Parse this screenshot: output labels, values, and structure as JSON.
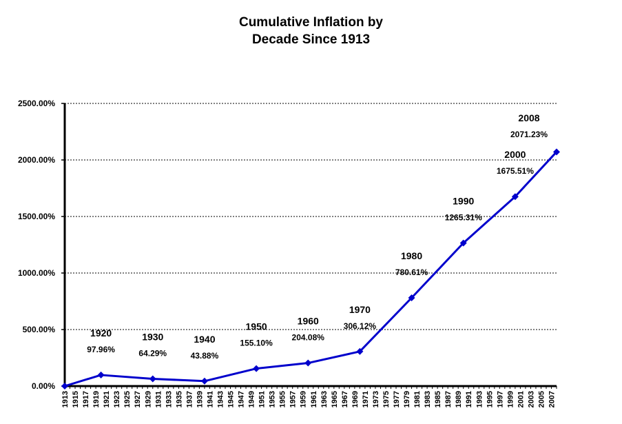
{
  "chart_data": {
    "type": "line",
    "title_lines": [
      "Cumulative Inflation by",
      "Decade Since 1913"
    ],
    "xlabel": "",
    "ylabel": "",
    "x_range": [
      1913,
      2008
    ],
    "ylim": [
      0,
      2500
    ],
    "y_ticks": [
      "0.00%",
      "500.00%",
      "1000.00%",
      "1500.00%",
      "2000.00%",
      "2500.00%"
    ],
    "x_tick_labels": [
      "1913",
      "1915",
      "1917",
      "1919",
      "1921",
      "1923",
      "1925",
      "1927",
      "1929",
      "1931",
      "1933",
      "1935",
      "1937",
      "1939",
      "1941",
      "1943",
      "1945",
      "1947",
      "1949",
      "1951",
      "1953",
      "1955",
      "1957",
      "1959",
      "1961",
      "1963",
      "1965",
      "1967",
      "1969",
      "1971",
      "1973",
      "1975",
      "1977",
      "1979",
      "1981",
      "1983",
      "1985",
      "1987",
      "1989",
      "1991",
      "1993",
      "1995",
      "1997",
      "1999",
      "2001",
      "2003",
      "2005",
      "2007"
    ],
    "grid": true,
    "line_color": "#0000cc",
    "series": [
      {
        "name": "Cumulative Inflation",
        "points": [
          {
            "x": 1913,
            "y": 0,
            "year_label": "",
            "value_label": ""
          },
          {
            "x": 1920,
            "y": 97.96,
            "year_label": "1920",
            "value_label": "97.96%"
          },
          {
            "x": 1930,
            "y": 64.29,
            "year_label": "1930",
            "value_label": "64.29%"
          },
          {
            "x": 1940,
            "y": 43.88,
            "year_label": "1940",
            "value_label": "43.88%"
          },
          {
            "x": 1950,
            "y": 155.1,
            "year_label": "1950",
            "value_label": "155.10%"
          },
          {
            "x": 1960,
            "y": 204.08,
            "year_label": "1960",
            "value_label": "204.08%"
          },
          {
            "x": 1970,
            "y": 306.12,
            "year_label": "1970",
            "value_label": "306.12%"
          },
          {
            "x": 1980,
            "y": 780.61,
            "year_label": "1980",
            "value_label": "780.61%"
          },
          {
            "x": 1990,
            "y": 1265.31,
            "year_label": "1990",
            "value_label": "1265.31%"
          },
          {
            "x": 2000,
            "y": 1675.51,
            "year_label": "2000",
            "value_label": "1675.51%"
          },
          {
            "x": 2008,
            "y": 2071.23,
            "year_label": "2008",
            "value_label": "2071.23%"
          }
        ]
      }
    ]
  }
}
